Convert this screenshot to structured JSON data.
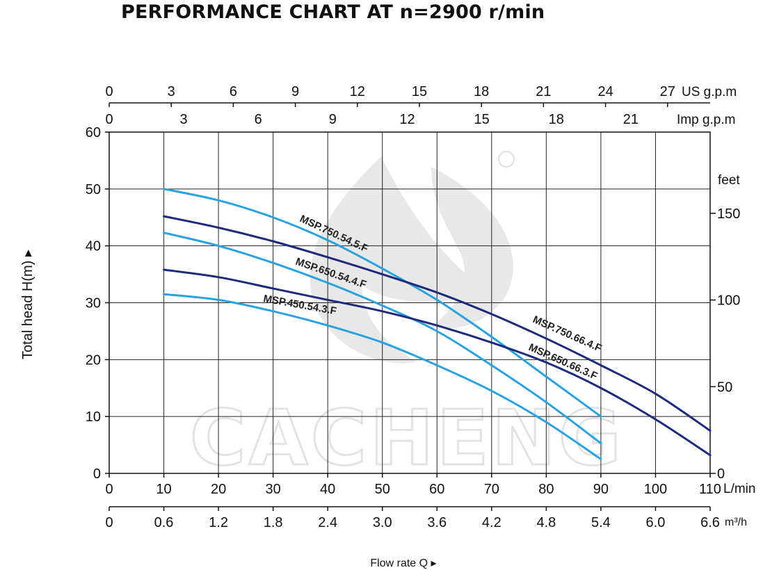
{
  "chart_data": {
    "type": "line",
    "title": "PERFORMANCE CHART AT n=2900 r/min",
    "xlabel": "Flow rate  Q ▸",
    "ylabel": "Total  head H(m) ▸",
    "xlim": [
      0,
      110
    ],
    "ylim": [
      0,
      60
    ],
    "grid": true,
    "x_unit": "L/min",
    "x_ticks": [
      0,
      10,
      20,
      30,
      40,
      50,
      60,
      70,
      80,
      90,
      100,
      110
    ],
    "y_ticks": [
      0,
      10,
      20,
      30,
      40,
      50,
      60
    ],
    "secondary_x_m3h": {
      "unit": "m³/h",
      "ticks": [
        "0",
        "0.6",
        "1.2",
        "1.8",
        "2.4",
        "3.0",
        "3.6",
        "4.2",
        "4.8",
        "5.4",
        "6.0",
        "6.6"
      ]
    },
    "top_x_us_gpm": {
      "unit": "US g.p.m",
      "ticks": [
        0,
        3,
        6,
        9,
        12,
        15,
        18,
        21,
        24,
        27
      ]
    },
    "top_x_imp_gpm": {
      "unit": "Imp g.p.m",
      "ticks": [
        0,
        3,
        6,
        9,
        12,
        15,
        18,
        21
      ]
    },
    "right_y_feet": {
      "unit": "feet",
      "ticks": [
        0,
        50,
        100,
        150
      ]
    },
    "series": [
      {
        "name": "MSP.750.54.5.F",
        "color": "#29a3df",
        "x": [
          10,
          20,
          30,
          40,
          50,
          60,
          70,
          80,
          90
        ],
        "y": [
          50,
          48,
          45,
          41,
          36,
          30.5,
          24,
          17,
          10
        ]
      },
      {
        "name": "MSP.650.54.4.F",
        "color": "#29a3df",
        "x": [
          10,
          20,
          30,
          40,
          50,
          60,
          70,
          80,
          90
        ],
        "y": [
          42.3,
          40,
          37,
          33.5,
          29.5,
          25,
          19,
          12.5,
          5.3
        ]
      },
      {
        "name": "MSP.450.54.3.F",
        "color": "#29a3df",
        "x": [
          10,
          20,
          30,
          40,
          50,
          60,
          70,
          80,
          90
        ],
        "y": [
          31.5,
          30.5,
          28.5,
          26,
          23,
          19,
          14.5,
          9,
          2.5
        ]
      },
      {
        "name": "MSP.750.66.4.F",
        "color": "#1f2a7a",
        "x": [
          10,
          20,
          30,
          40,
          50,
          60,
          70,
          80,
          90,
          100,
          110
        ],
        "y": [
          45.2,
          43.2,
          40.8,
          38,
          35,
          31.8,
          28,
          23.7,
          19,
          14,
          7.5
        ]
      },
      {
        "name": "MSP.650.66.3.F",
        "color": "#1f2a7a",
        "x": [
          10,
          20,
          30,
          40,
          50,
          60,
          70,
          80,
          90,
          100,
          110
        ],
        "y": [
          35.8,
          34.5,
          32.5,
          30.5,
          28.5,
          26,
          23,
          19.5,
          15,
          9.5,
          3.2
        ]
      }
    ]
  },
  "watermark": "CACHENG"
}
